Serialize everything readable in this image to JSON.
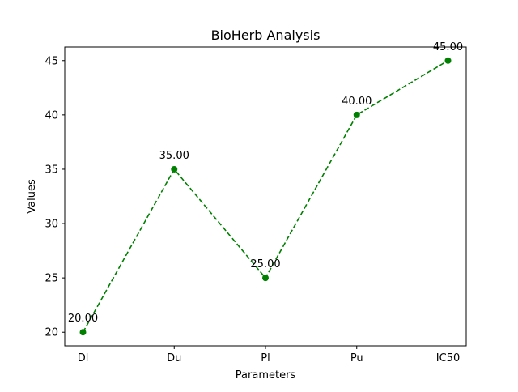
{
  "chart_data": {
    "type": "line",
    "title": "BioHerb Analysis",
    "xlabel": "Parameters",
    "ylabel": "Values",
    "categories": [
      "Dl",
      "Du",
      "Pl",
      "Pu",
      "IC50"
    ],
    "series": [
      {
        "values": [
          20,
          35,
          25,
          40,
          45
        ],
        "color": "#008000",
        "line_style": "dashed",
        "marker": "circle"
      }
    ],
    "data_labels": [
      "20.00",
      "35.00",
      "25.00",
      "40.00",
      "45.00"
    ],
    "ylim": [
      18.75,
      46.25
    ],
    "yticks": [
      20,
      25,
      30,
      35,
      40,
      45
    ],
    "grid": false,
    "legend": "none"
  }
}
